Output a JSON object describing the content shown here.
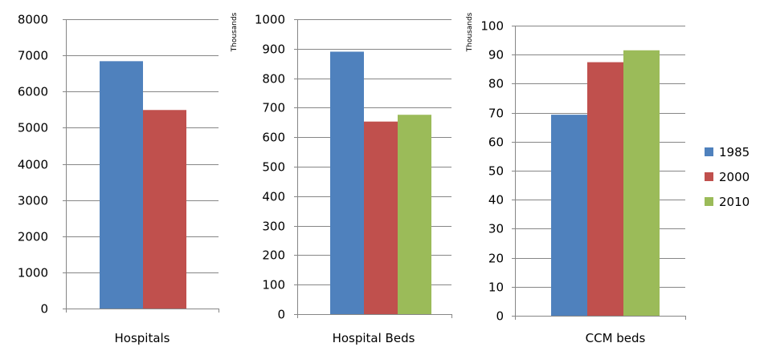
{
  "colors": {
    "1985": "#4F81BD",
    "2000": "#C0504D",
    "2010": "#9BBB59"
  },
  "legend": [
    "1985",
    "2000",
    "2010"
  ],
  "chart_data": [
    {
      "type": "bar",
      "categories": [
        "Hospitals"
      ],
      "series": [
        {
          "name": "1985",
          "values": [
            6840
          ]
        },
        {
          "name": "2000",
          "values": [
            5490
          ]
        }
      ],
      "ylabel": "",
      "ylim": [
        0,
        8000
      ],
      "yticks": [
        "0",
        "1000",
        "2000",
        "3000",
        "4000",
        "5000",
        "6000",
        "7000",
        "8000"
      ],
      "grid": true,
      "legend_position": "right"
    },
    {
      "type": "bar",
      "categories": [
        "Hospital Beds"
      ],
      "series": [
        {
          "name": "1985",
          "values": [
            890
          ]
        },
        {
          "name": "2000",
          "values": [
            653
          ]
        },
        {
          "name": "2010",
          "values": [
            676
          ]
        }
      ],
      "ylabel": "Thousands",
      "ylim": [
        0,
        1000
      ],
      "yticks": [
        "0",
        "100",
        "200",
        "300",
        "400",
        "500",
        "600",
        "700",
        "800",
        "900",
        "1000"
      ],
      "grid": true,
      "legend_position": "right"
    },
    {
      "type": "bar",
      "categories": [
        "CCM beds"
      ],
      "series": [
        {
          "name": "1985",
          "values": [
            69.3
          ]
        },
        {
          "name": "2000",
          "values": [
            87.4
          ]
        },
        {
          "name": "2010",
          "values": [
            91.5
          ]
        }
      ],
      "ylabel": "Thousands",
      "ylim": [
        0,
        100
      ],
      "yticks": [
        "0",
        "10",
        "20",
        "30",
        "40",
        "50",
        "60",
        "70",
        "80",
        "90",
        "100"
      ],
      "grid": true,
      "legend_position": "right"
    }
  ]
}
